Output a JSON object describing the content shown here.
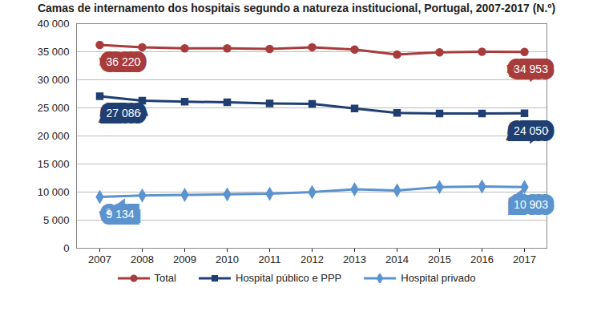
{
  "chart_data": {
    "type": "line",
    "title": "Camas de internamento dos hospitais segundo a natureza institucional, Portugal, 2007-2017 (N.º)",
    "categories": [
      "2007",
      "2008",
      "2009",
      "2010",
      "2011",
      "2012",
      "2013",
      "2014",
      "2015",
      "2016",
      "2017"
    ],
    "series": [
      {
        "name": "Total",
        "color": "#a83c3c",
        "marker": "circle",
        "values": [
          36220,
          35800,
          35600,
          35600,
          35500,
          35800,
          35400,
          34500,
          34900,
          35000,
          34953
        ],
        "value_labels": [
          "36 220",
          null,
          null,
          null,
          null,
          null,
          null,
          null,
          null,
          null,
          "34 953"
        ]
      },
      {
        "name": "Hospital público e PPP",
        "color": "#1f3f72",
        "marker": "square",
        "values": [
          27086,
          26300,
          26100,
          26000,
          25800,
          25700,
          24900,
          24100,
          24000,
          24000,
          24050
        ],
        "value_labels": [
          "27 086",
          null,
          null,
          null,
          null,
          null,
          null,
          null,
          null,
          null,
          "24 050"
        ]
      },
      {
        "name": "Hospital privado",
        "color": "#5b93cf",
        "marker": "diamond",
        "values": [
          9134,
          9400,
          9500,
          9600,
          9700,
          10000,
          10500,
          10300,
          10900,
          11000,
          10903
        ],
        "value_labels": [
          "9 134",
          null,
          null,
          null,
          null,
          null,
          null,
          null,
          null,
          null,
          "10 903"
        ]
      }
    ],
    "ylim": [
      0,
      40000
    ],
    "yticks": [
      0,
      {
        "value": 5000,
        "label": "5 000"
      },
      {
        "value": 10000,
        "label": "10 000"
      },
      {
        "value": 15000,
        "label": "15 000"
      },
      {
        "value": 20000,
        "label": "20 000"
      },
      {
        "value": 25000,
        "label": "25 000"
      },
      {
        "value": 30000,
        "label": "30 000"
      },
      {
        "value": 35000,
        "label": "35 000"
      },
      {
        "value": 40000,
        "label": "40 000"
      }
    ],
    "grid": true,
    "legend": "bottom"
  }
}
